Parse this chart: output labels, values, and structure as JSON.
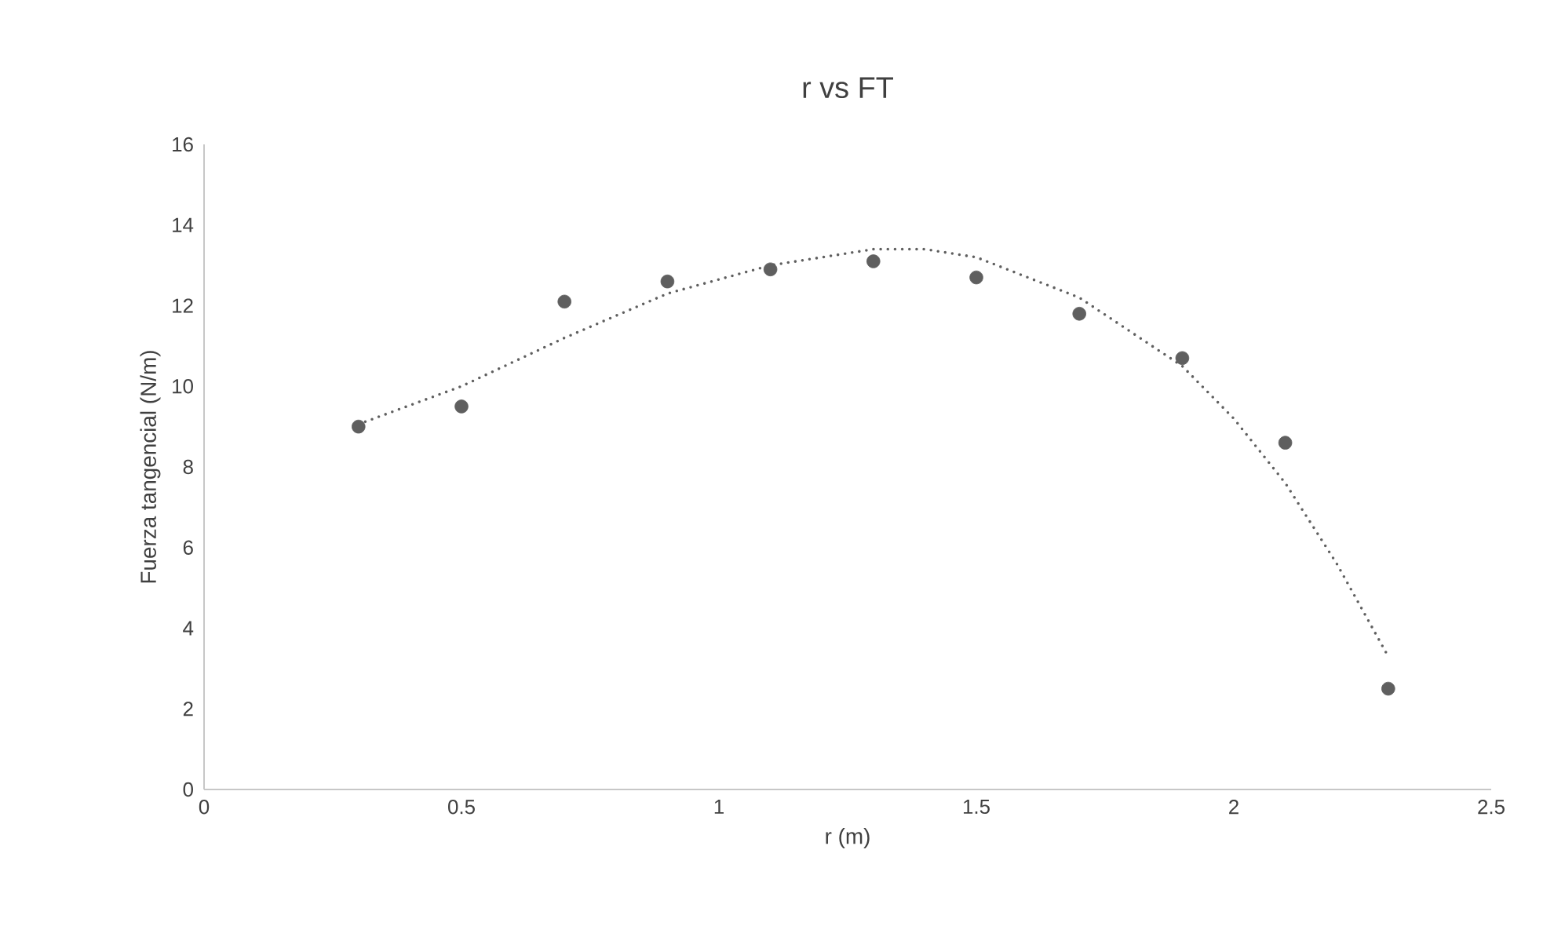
{
  "chart_data": {
    "type": "scatter",
    "title": "r vs FT",
    "xlabel": "r (m)",
    "ylabel": "Fuerza tangencial (N/m)",
    "xlim": [
      0,
      2.5
    ],
    "ylim": [
      0,
      16
    ],
    "xticks": [
      0,
      0.5,
      1,
      1.5,
      2,
      2.5
    ],
    "yticks": [
      0,
      2,
      4,
      6,
      8,
      10,
      12,
      14,
      16
    ],
    "grid": false,
    "series": [
      {
        "color": "#5f5f5f",
        "marker": "circle",
        "x": [
          0.3,
          0.5,
          0.7,
          0.9,
          1.1,
          1.3,
          1.5,
          1.7,
          1.9,
          2.1,
          2.3
        ],
        "values": [
          9.0,
          9.5,
          12.1,
          12.6,
          12.9,
          13.1,
          12.7,
          11.8,
          10.7,
          8.6,
          2.5
        ]
      },
      {
        "type": "line",
        "color": "#5f5f5f",
        "marker": "none",
        "line_style": "dotted",
        "x": [
          0.3,
          0.5,
          0.7,
          0.9,
          1.1,
          1.3,
          1.4,
          1.5,
          1.7,
          1.9,
          2.0,
          2.1,
          2.2,
          2.3
        ],
        "values": [
          9.06,
          10.0,
          11.2,
          12.3,
          13.0,
          13.4,
          13.4,
          13.2,
          12.2,
          10.5,
          9.2,
          7.6,
          5.6,
          3.3
        ]
      }
    ]
  }
}
